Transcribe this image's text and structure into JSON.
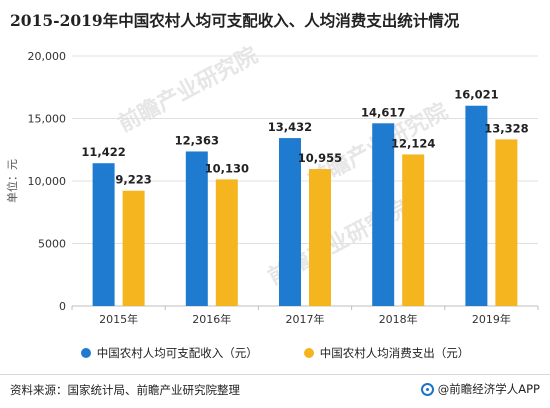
{
  "title": "2015-2019年中国农村人均可支配收入、人均消费支出统计情况",
  "watermark": "前瞻产业研究院",
  "footer": {
    "source": "资料来源：国家统计局、前瞻产业研究院整理",
    "brand": "@前瞻经济学人APP"
  },
  "colors": {
    "series1": "#1f7bd0",
    "series2": "#f5b51f",
    "grid": "#e0e0e0",
    "axis": "#bfbfbf"
  },
  "chart_data": {
    "type": "bar",
    "title": "2015-2019年中国农村人均可支配收入、人均消费支出统计情况",
    "categories": [
      "2015年",
      "2016年",
      "2017年",
      "2018年",
      "2019年"
    ],
    "series": [
      {
        "name": "中国农村人均可支配收入（元）",
        "values": [
          11422,
          12363,
          13432,
          14617,
          16021
        ],
        "labels": [
          "11,422",
          "12,363",
          "13,432",
          "14,617",
          "16,021"
        ]
      },
      {
        "name": "中国农村人均消费支出（元）",
        "values": [
          9223,
          10130,
          10955,
          12124,
          13328
        ],
        "labels": [
          "9,223",
          "10,130",
          "10,955",
          "12,124",
          "13,328"
        ]
      }
    ],
    "ylabel": "单位：元",
    "xlabel": "",
    "ylim": [
      0,
      20000
    ],
    "yticks": [
      0,
      5000,
      10000,
      15000,
      20000
    ],
    "ytick_labels": [
      "0",
      "5000",
      "10,000",
      "15,000",
      "20,000"
    ],
    "grid": true,
    "legend": "bottom"
  }
}
